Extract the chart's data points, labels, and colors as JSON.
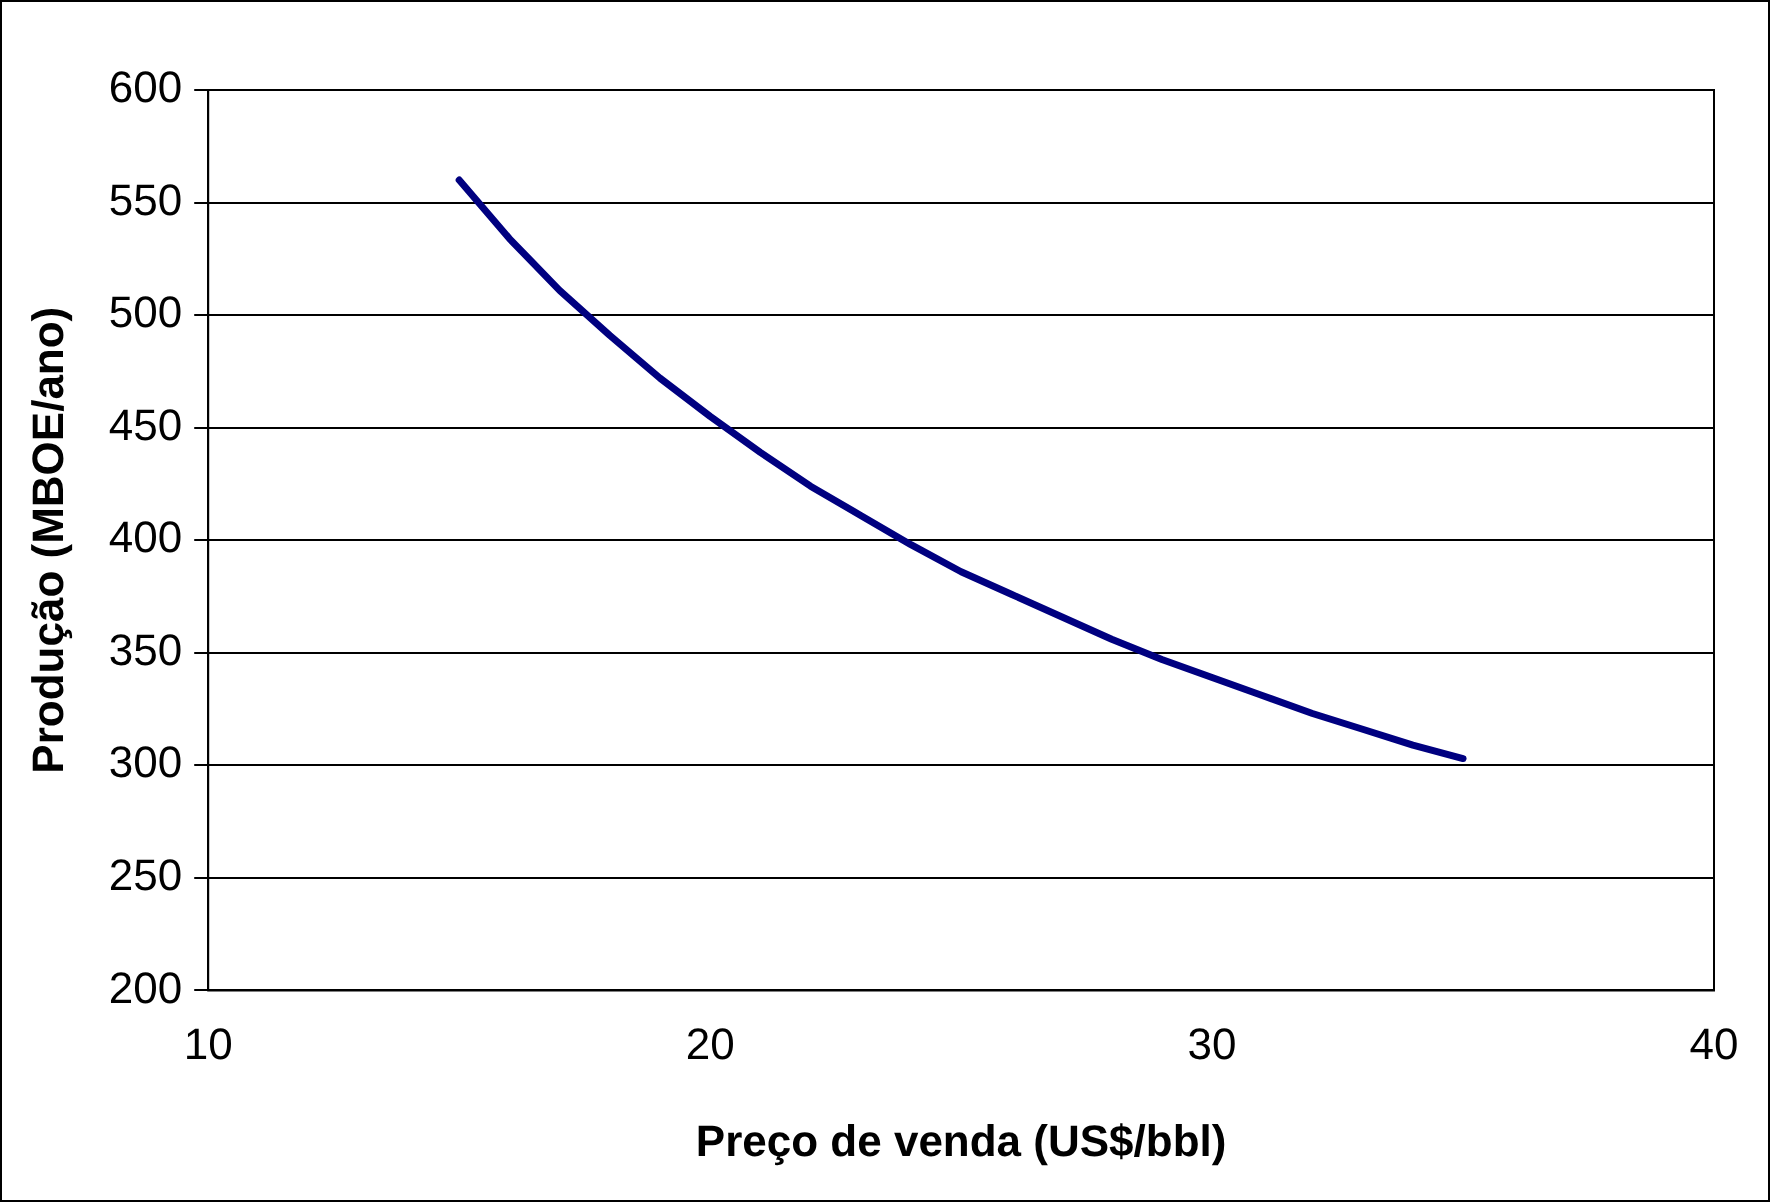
{
  "chart_data": {
    "type": "line",
    "xlabel": "Preço de venda (US$/bbl)",
    "ylabel": "Produção (MBOE/ano)",
    "x": [
      15,
      16,
      17,
      18,
      19,
      20,
      21,
      22,
      23,
      24,
      25,
      26,
      27,
      28,
      29,
      30,
      31,
      32,
      33,
      34,
      35
    ],
    "series": [
      {
        "color": "#000080",
        "values": [
          560,
          534,
          511,
          491,
          472,
          455,
          439,
          424,
          411,
          398,
          386,
          376,
          366,
          356,
          347,
          339,
          331,
          323,
          316,
          309,
          303
        ]
      }
    ],
    "xlim": [
      10,
      40
    ],
    "xticks": [
      10,
      20,
      30,
      40
    ],
    "ylim": [
      200,
      600
    ],
    "yticks": [
      200,
      250,
      300,
      350,
      400,
      450,
      500,
      550,
      600
    ],
    "grid": "y",
    "legend": false,
    "marker": "none",
    "line_style": "solid"
  }
}
